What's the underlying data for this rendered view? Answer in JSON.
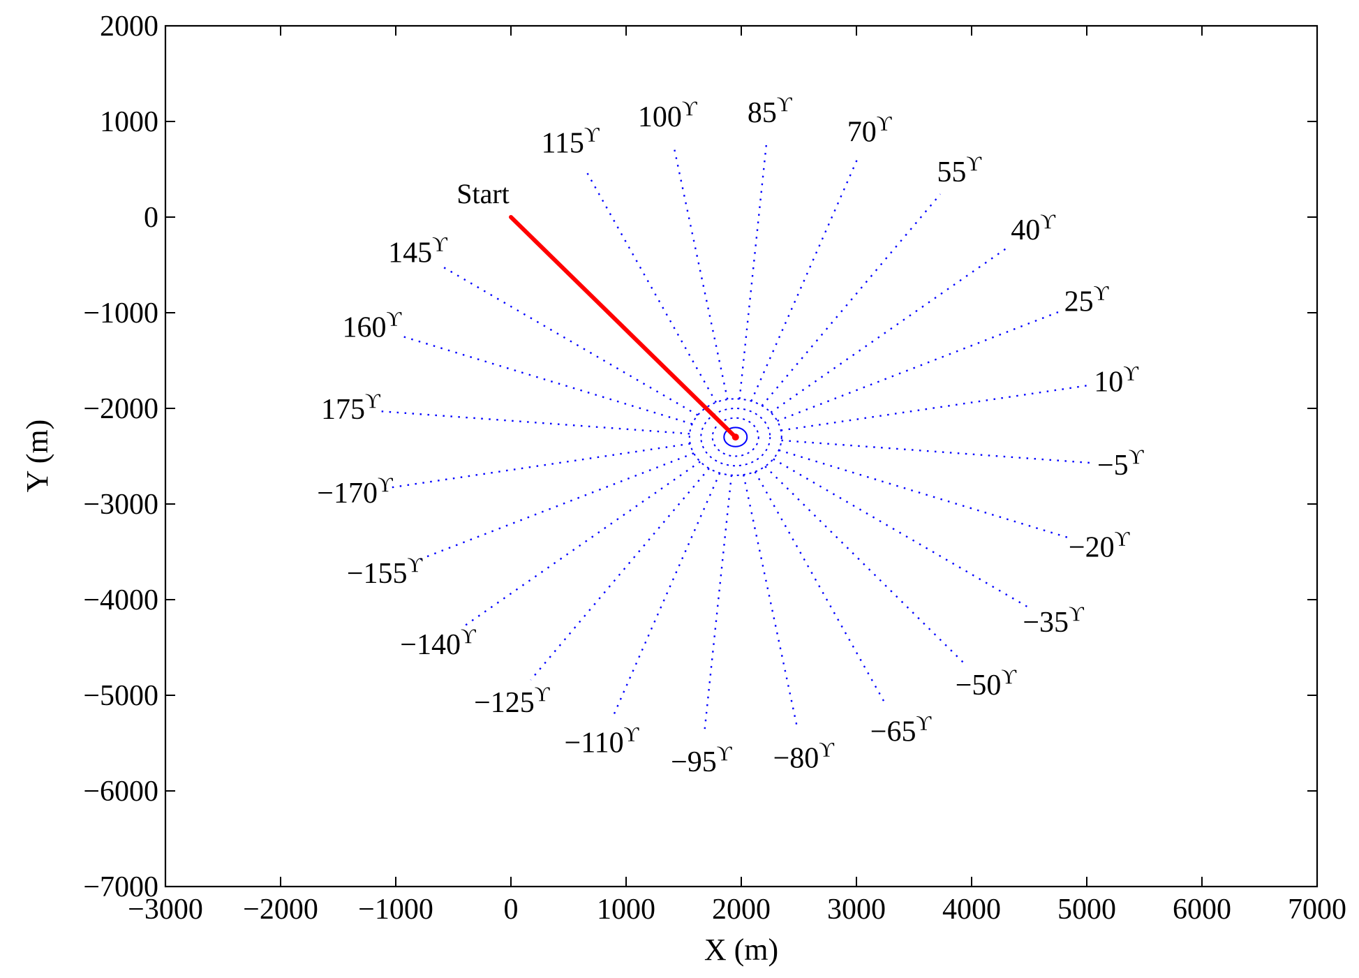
{
  "chart_data": {
    "type": "line",
    "title": "",
    "xlabel": "X (m)",
    "ylabel": "Y (m)",
    "xlim": [
      -3000,
      7000
    ],
    "ylim": [
      -7000,
      2000
    ],
    "xticks": [
      -3000,
      -2000,
      -1000,
      0,
      1000,
      2000,
      3000,
      4000,
      5000,
      6000,
      7000
    ],
    "yticks": [
      2000,
      1000,
      0,
      -1000,
      -2000,
      -3000,
      -4000,
      -5000,
      -6000,
      -7000
    ],
    "xtick_labels": [
      "−3000",
      "−2000",
      "−1000",
      "0",
      "1000",
      "2000",
      "3000",
      "4000",
      "5000",
      "6000",
      "7000"
    ],
    "ytick_labels": [
      "2000",
      "1000",
      "0",
      "−1000",
      "−2000",
      "−3000",
      "−4000",
      "−5000",
      "−6000",
      "−7000"
    ],
    "grid": false,
    "colors": {
      "path": "#ff0000",
      "rays": "#0000ff",
      "axes": "#000000"
    },
    "start_point": {
      "x": 0,
      "y": 0,
      "label": "Start"
    },
    "path": {
      "x": [
        0,
        1950
      ],
      "y": [
        0,
        -2300
      ]
    },
    "center": {
      "x": 1950,
      "y": -2300
    },
    "circle_radii": [
      100,
      200,
      300,
      400
    ],
    "ray_length": 3100,
    "degree_symbol": "ϒ",
    "rays": [
      {
        "angle": 115,
        "label": "115"
      },
      {
        "angle": 100,
        "label": "100"
      },
      {
        "angle": 85,
        "label": "85"
      },
      {
        "angle": 70,
        "label": "70"
      },
      {
        "angle": 55,
        "label": "55"
      },
      {
        "angle": 40,
        "label": "40"
      },
      {
        "angle": 25,
        "label": "25"
      },
      {
        "angle": 10,
        "label": "10"
      },
      {
        "angle": -5,
        "label": "−5"
      },
      {
        "angle": -20,
        "label": "−20"
      },
      {
        "angle": -35,
        "label": "−35"
      },
      {
        "angle": -50,
        "label": "−50"
      },
      {
        "angle": -65,
        "label": "−65"
      },
      {
        "angle": -80,
        "label": "−80"
      },
      {
        "angle": -95,
        "label": "−95"
      },
      {
        "angle": -110,
        "label": "−110"
      },
      {
        "angle": -125,
        "label": "−125"
      },
      {
        "angle": -140,
        "label": "−140"
      },
      {
        "angle": -155,
        "label": "−155"
      },
      {
        "angle": -170,
        "label": "−170"
      },
      {
        "angle": 175,
        "label": "175"
      },
      {
        "angle": 160,
        "label": "160"
      },
      {
        "angle": 145,
        "label": "145"
      }
    ]
  }
}
